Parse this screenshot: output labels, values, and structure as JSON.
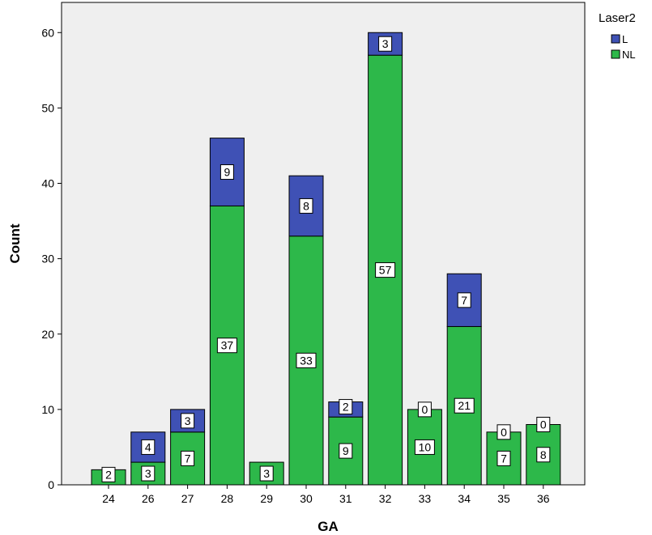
{
  "chart_data": {
    "type": "bar",
    "stacked": true,
    "categories": [
      "24",
      "26",
      "27",
      "28",
      "29",
      "30",
      "31",
      "32",
      "33",
      "34",
      "35",
      "36"
    ],
    "series": [
      {
        "name": "NL",
        "color": "#2db84a",
        "values": [
          2,
          3,
          7,
          37,
          3,
          33,
          9,
          57,
          10,
          21,
          7,
          8
        ]
      },
      {
        "name": "L",
        "color": "#3f51b5",
        "values": [
          0,
          4,
          3,
          9,
          0,
          8,
          2,
          3,
          0,
          7,
          0,
          0
        ]
      }
    ],
    "data_labels": {
      "NL": [
        "2",
        "3",
        "7",
        "37",
        "3",
        "33",
        "9",
        "57",
        "10",
        "21",
        "7",
        "8"
      ],
      "L": [
        "",
        "4",
        "3",
        "9",
        "",
        "8",
        "2",
        "3",
        "0",
        "7",
        "0",
        "0"
      ]
    },
    "xlabel": "GA",
    "ylabel": "Count",
    "ylim": [
      0,
      64
    ],
    "yticks": [
      "0",
      "10",
      "20",
      "30",
      "40",
      "50",
      "60"
    ],
    "legend": {
      "title": "Laser2",
      "entries": [
        "L",
        "NL"
      ],
      "placement": "right"
    },
    "plot_background": "#efefef",
    "grid": false
  }
}
